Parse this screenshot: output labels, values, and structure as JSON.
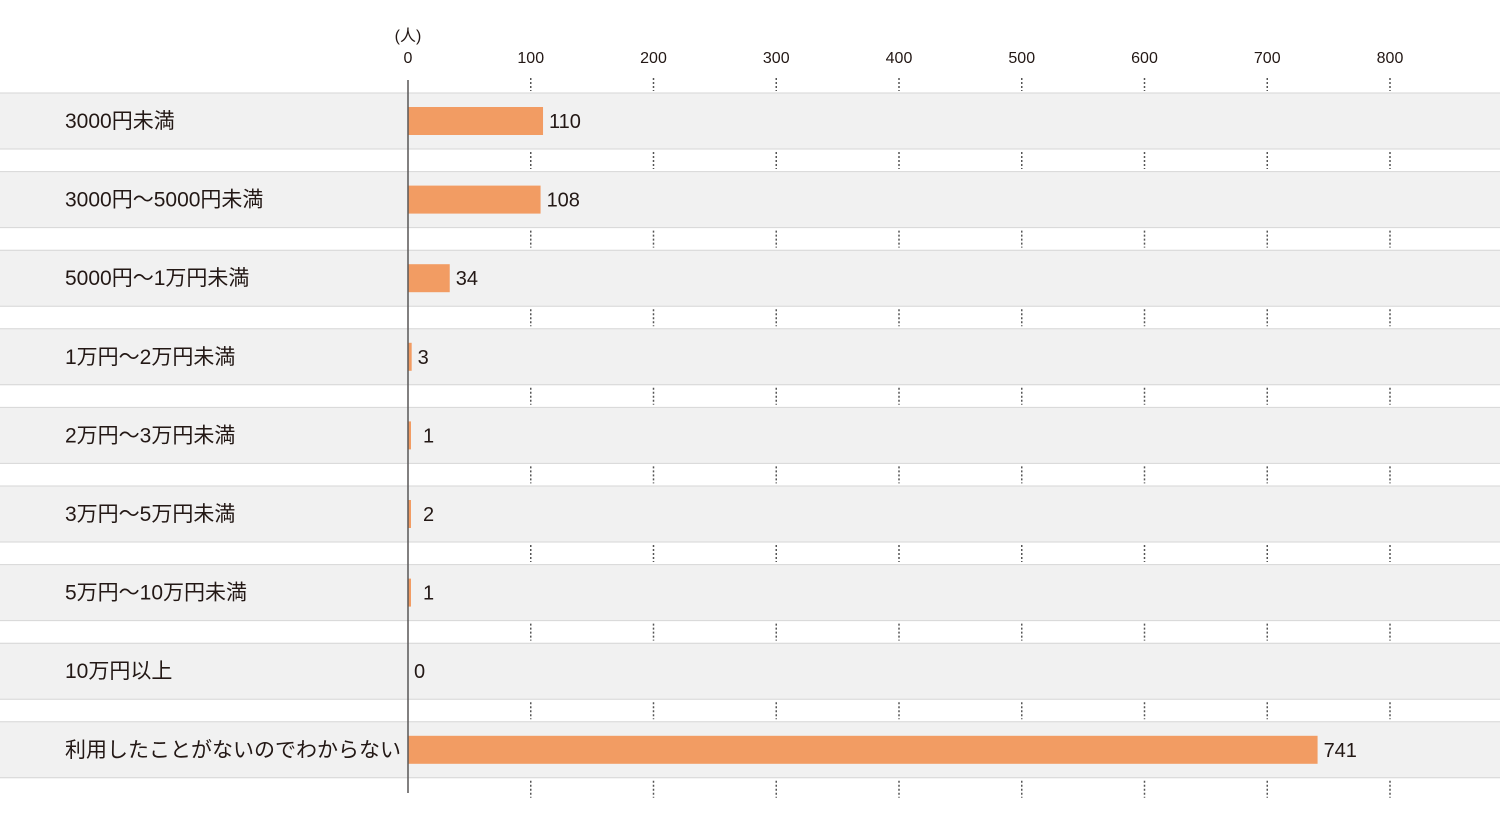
{
  "chart_data": {
    "type": "bar",
    "orientation": "horizontal",
    "unit_label": "(人)",
    "categories": [
      "3000円未満",
      "3000円～5000円未満",
      "5000円～1万円未満",
      "1万円～2万円未満",
      "2万円～3万円未満",
      "3万円～5万円未満",
      "5万円～10万円未満",
      "10万円以上",
      "利用したことがないのでわからない"
    ],
    "values": [
      110,
      108,
      34,
      3,
      1,
      2,
      1,
      0,
      741
    ],
    "xlim": [
      0,
      800
    ],
    "xticks": [
      0,
      100,
      200,
      300,
      400,
      500,
      600,
      700,
      800
    ],
    "grid": "dotted",
    "colors": {
      "bar": "#f29c63",
      "band": "#f1f1f1",
      "axis": "#595757"
    }
  }
}
